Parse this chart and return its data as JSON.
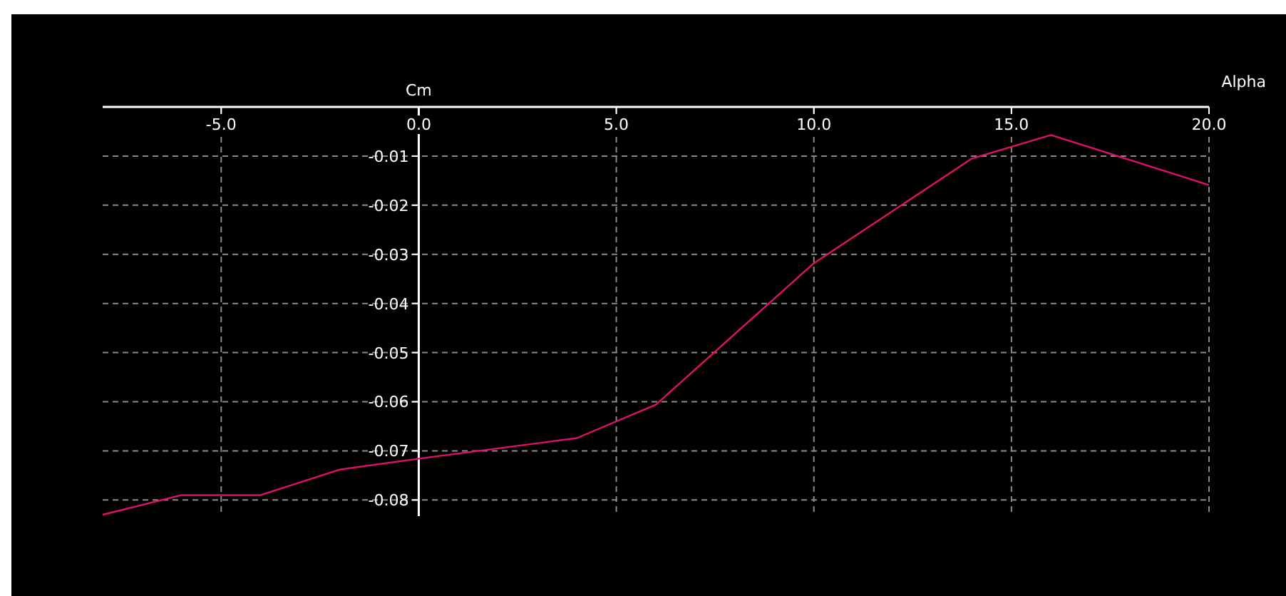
{
  "chart_data": {
    "type": "line",
    "xlabel": "Alpha",
    "ylabel": "Cm",
    "x": [
      -8,
      -6,
      -4,
      -2,
      0,
      4,
      6,
      10,
      14,
      16,
      20
    ],
    "series": [
      {
        "color": "#e0106a",
        "values": [
          -0.083,
          -0.079,
          -0.079,
          -0.0738,
          -0.0716,
          -0.0674,
          -0.0606,
          -0.0318,
          -0.0105,
          -0.0057,
          -0.0159
        ]
      }
    ],
    "xlim": [
      -8,
      20
    ],
    "xticks": [
      {
        "value": -5,
        "label": "-5.0"
      },
      {
        "value": 0,
        "label": "0.0"
      },
      {
        "value": 5,
        "label": "5.0"
      },
      {
        "value": 10,
        "label": "10.0"
      },
      {
        "value": 15,
        "label": "15.0"
      },
      {
        "value": 20,
        "label": "20.0"
      }
    ],
    "ylim": [
      -0.083,
      0
    ],
    "yticks": [
      -0.01,
      -0.02,
      -0.03,
      -0.04,
      -0.05,
      -0.06,
      -0.07,
      -0.08
    ],
    "grid": true,
    "marker": "none",
    "line_style": "solid"
  }
}
